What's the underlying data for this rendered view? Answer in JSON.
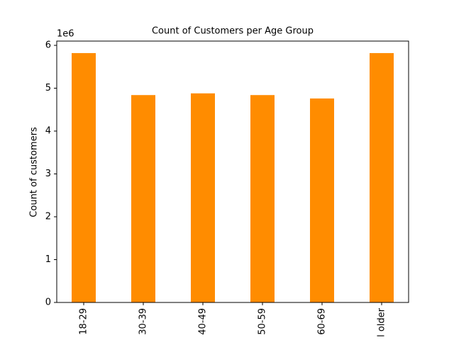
{
  "chart_data": {
    "type": "bar",
    "title": "Count of Customers per Age Group",
    "y_label": "Count of customers",
    "y_offset_label": "1e6",
    "categories": [
      "18-29",
      "30-39",
      "40-49",
      "50-59",
      "60-69",
      "l older"
    ],
    "values": [
      5.82,
      4.84,
      4.88,
      4.84,
      4.76,
      5.82
    ],
    "color": "#ff8c00",
    "ylim": [
      0,
      6.1
    ],
    "yticks": [
      0,
      1,
      2,
      3,
      4,
      5,
      6
    ],
    "grid": false
  }
}
